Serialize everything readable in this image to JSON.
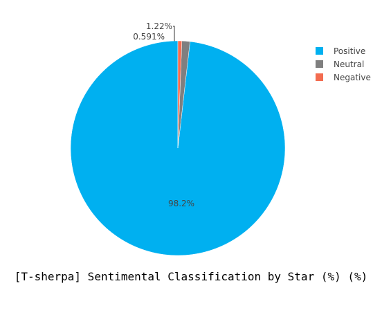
{
  "chart_data": {
    "type": "pie",
    "title": "[T-sherpa] Sentimental Classification by Star (%) (%)",
    "slices": [
      {
        "label": "Positive",
        "value": 98.2,
        "display": "98.2%",
        "color": "#00b0f0"
      },
      {
        "label": "Neutral",
        "value": 1.22,
        "display": "1.22%",
        "color": "#7f7f7f"
      },
      {
        "label": "Negative",
        "value": 0.591,
        "display": "0.591%",
        "color": "#f36c50"
      }
    ],
    "direction": "counterclockwise",
    "legend_position": "top-right"
  }
}
